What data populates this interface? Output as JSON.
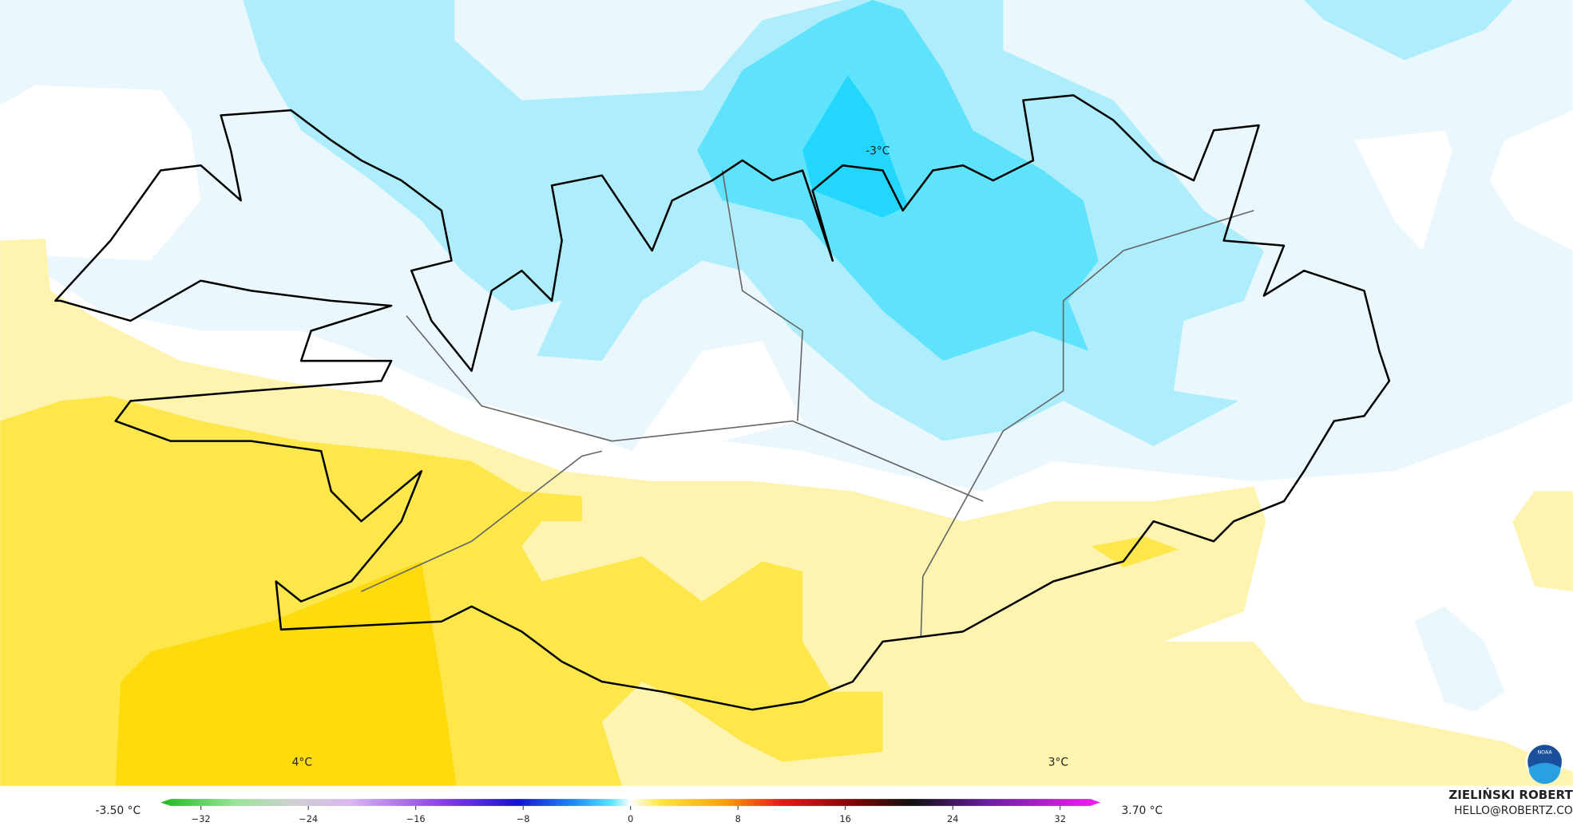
{
  "map": {
    "contour_labels": [
      "-3°C",
      "4°C",
      "3°C"
    ]
  },
  "colorbar": {
    "min_label": "-3.50 °C",
    "max_label": "3.70 °C",
    "lim": [
      -35,
      35
    ],
    "ticks": [
      {
        "value": -32,
        "label": "−32"
      },
      {
        "value": -24,
        "label": "−24"
      },
      {
        "value": -16,
        "label": "−16"
      },
      {
        "value": -8,
        "label": "−8"
      },
      0,
      8,
      16,
      24,
      32
    ]
  },
  "credit": {
    "author": "ZIELIŃSKI ROBERT",
    "contact": "HELLO@ROBERTZ.CO",
    "logo": "NOAA"
  }
}
